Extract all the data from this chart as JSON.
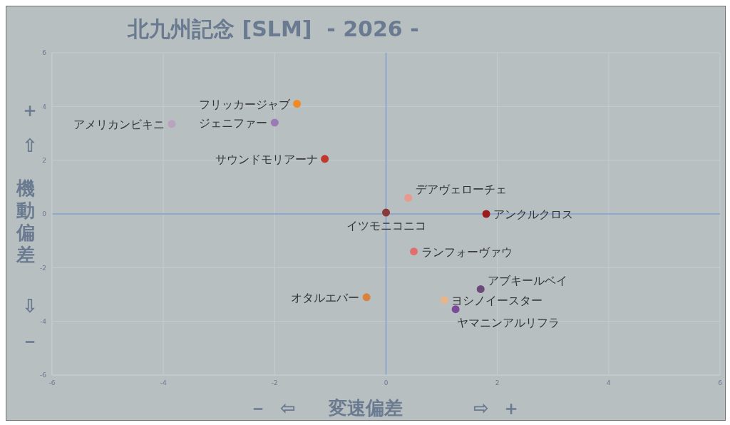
{
  "chart_data": {
    "type": "scatter",
    "title": "北九州記念 [SLM]  - 2026 -",
    "xlabel": "変速偏差",
    "ylabel": "機動偏差",
    "annotations": [
      "－  ⇦",
      "⇨  ＋",
      "＋",
      "⇧",
      "⇩",
      "－"
    ],
    "xlim": [
      -6,
      6
    ],
    "ylim": [
      -6,
      6
    ],
    "xticks": [
      -6,
      -4,
      -2,
      0,
      2,
      4,
      6
    ],
    "yticks": [
      -6,
      -4,
      -2,
      0,
      2,
      4,
      6
    ],
    "grid": true,
    "legend": false,
    "marker": "circle",
    "series": [
      {
        "name": "フリッカージャブ",
        "color": "#f08a24",
        "x": [
          -1.6
        ],
        "values": [
          4.1
        ]
      },
      {
        "name": "ジェニファー",
        "color": "#9b7bb5",
        "x": [
          -2.0
        ],
        "values": [
          3.4
        ]
      },
      {
        "name": "アメリカンビキニ",
        "color": "#b9a3bf",
        "x": [
          -3.85
        ],
        "values": [
          3.35
        ]
      },
      {
        "name": "サウンドモリアーナ",
        "color": "#c0392b",
        "x": [
          -1.1
        ],
        "values": [
          2.05
        ]
      },
      {
        "name": "デアヴェローチェ",
        "color": "#e89a8e",
        "x": [
          0.4
        ],
        "values": [
          0.6
        ]
      },
      {
        "name": "イツモニコニコ",
        "color": "#8b3a3a",
        "x": [
          0
        ],
        "values": [
          0.05
        ]
      },
      {
        "name": "アンクルクロス",
        "color": "#9b1c1c",
        "x": [
          1.8
        ],
        "values": [
          0
        ]
      },
      {
        "name": "ランフォーヴァウ",
        "color": "#e07070",
        "x": [
          0.5
        ],
        "values": [
          -1.4
        ]
      },
      {
        "name": "アブキールベイ",
        "color": "#6b4a7a",
        "x": [
          1.7
        ],
        "values": [
          -2.8
        ]
      },
      {
        "name": "ヨシノイースター",
        "color": "#e8b48a",
        "x": [
          1.05
        ],
        "values": [
          -3.2
        ]
      },
      {
        "name": "ヤマニンアルリフラ",
        "color": "#7b4a9b",
        "x": [
          1.25
        ],
        "values": [
          -3.55
        ]
      },
      {
        "name": "オタルエバー",
        "color": "#d9823e",
        "x": [
          -0.35
        ],
        "values": [
          -3.1
        ]
      }
    ]
  }
}
